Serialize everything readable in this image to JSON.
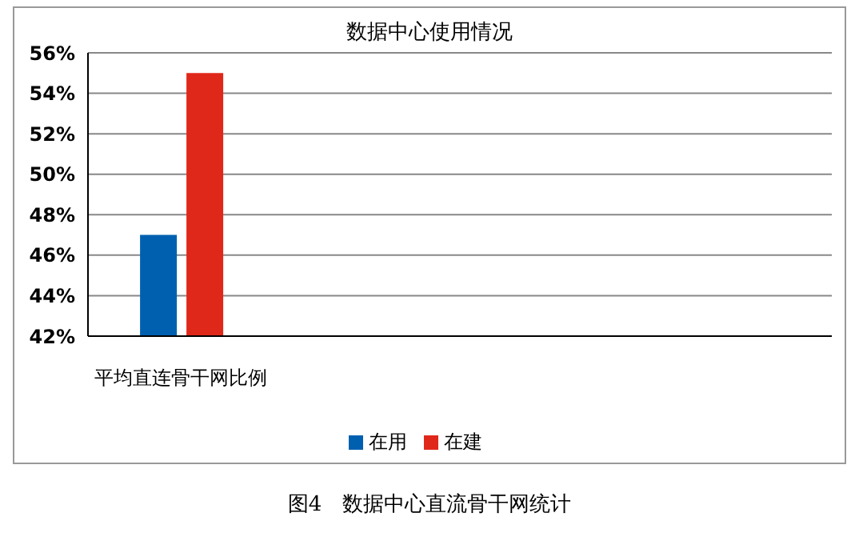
{
  "chart_data": {
    "type": "bar",
    "title": "数据中心使用情况",
    "categories": [
      "平均直连骨干网比例",
      null,
      null,
      null
    ],
    "series": [
      {
        "name": "在用",
        "color": "#0060b0",
        "values": [
          47,
          null,
          null,
          null
        ]
      },
      {
        "name": "在建",
        "color": "#e0281a",
        "values": [
          55,
          null,
          null,
          null
        ]
      }
    ],
    "ylim": [
      42,
      56
    ],
    "yticks": [
      {
        "value": 42,
        "label": "42%"
      },
      {
        "value": 44,
        "label": "44%"
      },
      {
        "value": 46,
        "label": "46%"
      },
      {
        "value": 48,
        "label": "48%"
      },
      {
        "value": 50,
        "label": "50%"
      },
      {
        "value": 52,
        "label": "52%"
      },
      {
        "value": 54,
        "label": "54%"
      },
      {
        "value": 56,
        "label": "56%"
      }
    ],
    "grid": "y",
    "legend": "bottom",
    "annotations": [
      "图4　数据中心直流骨干网统计"
    ]
  }
}
